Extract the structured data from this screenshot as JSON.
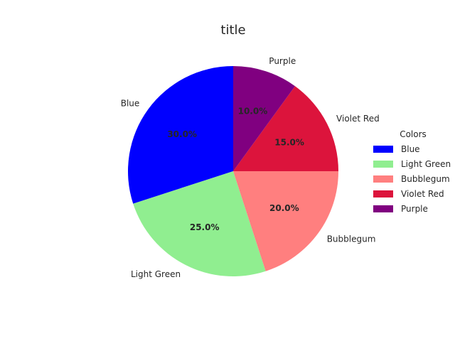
{
  "chart_data": {
    "type": "pie",
    "title": "title",
    "start_angle_deg": 90,
    "direction": "counterclockwise",
    "slices": [
      {
        "label": "Blue",
        "value": 30.0,
        "pct_label": "30.0%",
        "color": "#0000ff"
      },
      {
        "label": "Light Green",
        "value": 25.0,
        "pct_label": "25.0%",
        "color": "#90ee90"
      },
      {
        "label": "Bubblegum",
        "value": 20.0,
        "pct_label": "20.0%",
        "color": "#ff7f7f"
      },
      {
        "label": "Violet Red",
        "value": 15.0,
        "pct_label": "15.0%",
        "color": "#dc143c"
      },
      {
        "label": "Purple",
        "value": 10.0,
        "pct_label": "10.0%",
        "color": "#800080"
      }
    ],
    "legend": {
      "title": "Colors",
      "placement": "right"
    }
  }
}
